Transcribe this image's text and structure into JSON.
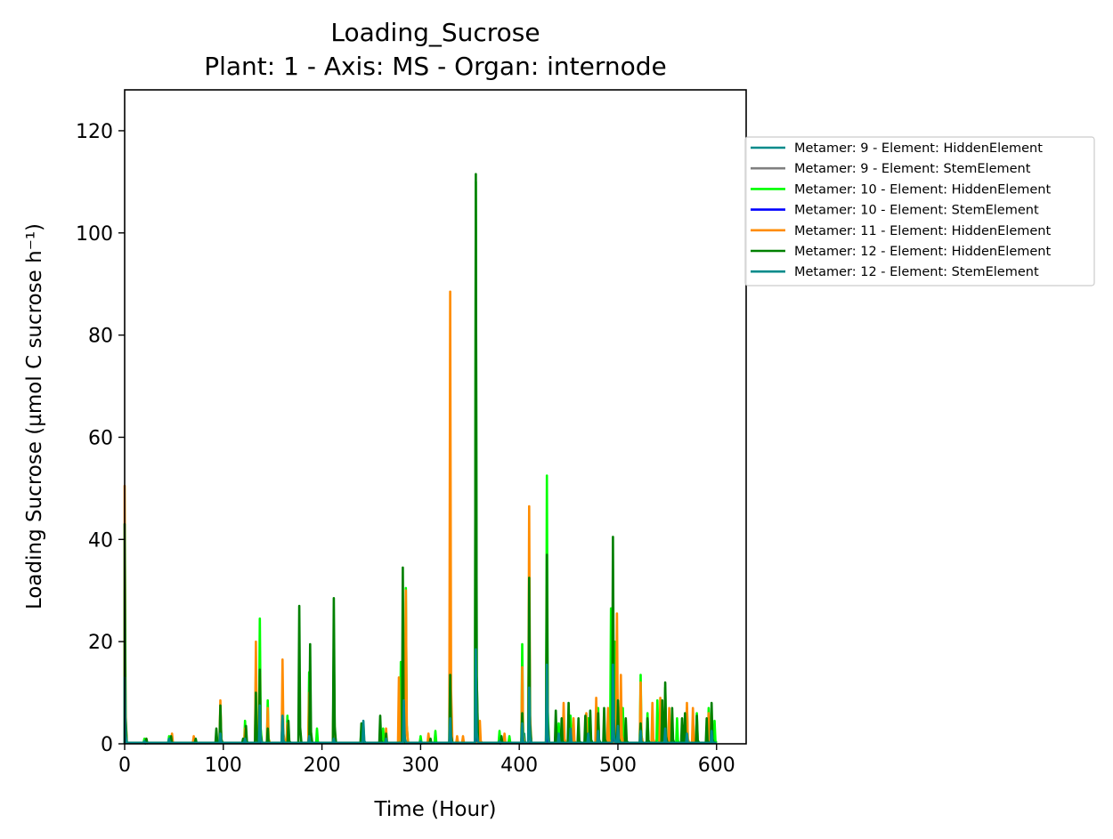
{
  "chart_data": {
    "type": "line",
    "title": "Loading_Sucrose",
    "subtitle": "Plant: 1 - Axis: MS - Organ: internode",
    "xlabel": "Time (Hour)",
    "ylabel": "Loading Sucrose (µmol C sucrose h⁻¹)",
    "xlim": [
      0,
      630
    ],
    "ylim": [
      0,
      128
    ],
    "xticks": [
      0,
      100,
      200,
      300,
      400,
      500,
      600
    ],
    "yticks": [
      0,
      20,
      40,
      60,
      80,
      100,
      120
    ],
    "grid": false,
    "legend_position": "outside-right",
    "series": [
      {
        "name": "Metamer: 9 - Element: HiddenElement",
        "color": "#008b8b",
        "spikes": [
          [
            0,
            4
          ],
          [
            137,
            3
          ],
          [
            160,
            2
          ],
          [
            283,
            2
          ],
          [
            330,
            1
          ],
          [
            356,
            3
          ],
          [
            405,
            2
          ],
          [
            428,
            3
          ],
          [
            452,
            2
          ],
          [
            495,
            3
          ],
          [
            545,
            2
          ],
          [
            595,
            1
          ]
        ]
      },
      {
        "name": "Metamer: 9 - Element: StemElement",
        "color": "#808080",
        "spikes": [
          [
            0,
            2
          ],
          [
            137,
            1
          ],
          [
            283,
            1
          ],
          [
            356,
            2
          ],
          [
            428,
            2
          ],
          [
            495,
            2
          ],
          [
            545,
            1
          ]
        ]
      },
      {
        "name": "Metamer: 10 - Element: HiddenElement",
        "color": "#00ff00",
        "spikes": [
          [
            0,
            30
          ],
          [
            20,
            1
          ],
          [
            45,
            1.5
          ],
          [
            70,
            1
          ],
          [
            97,
            7
          ],
          [
            122,
            4.5
          ],
          [
            133,
            15
          ],
          [
            137,
            24.5
          ],
          [
            145,
            8.5
          ],
          [
            160,
            5
          ],
          [
            165,
            5.5
          ],
          [
            187,
            14
          ],
          [
            195,
            3
          ],
          [
            212,
            19
          ],
          [
            240,
            3
          ],
          [
            262,
            3
          ],
          [
            280,
            16
          ],
          [
            285,
            30.5
          ],
          [
            300,
            1.5
          ],
          [
            315,
            2.5
          ],
          [
            330,
            12
          ],
          [
            356,
            110
          ],
          [
            380,
            2.5
          ],
          [
            390,
            1.5
          ],
          [
            403,
            19.5
          ],
          [
            410,
            28
          ],
          [
            428,
            52.5
          ],
          [
            440,
            4
          ],
          [
            452,
            5.5
          ],
          [
            470,
            5
          ],
          [
            480,
            7
          ],
          [
            493,
            26.5
          ],
          [
            497,
            20
          ],
          [
            505,
            7
          ],
          [
            523,
            13.5
          ],
          [
            530,
            6
          ],
          [
            540,
            8.5
          ],
          [
            548,
            11
          ],
          [
            560,
            5
          ],
          [
            570,
            7
          ],
          [
            580,
            6
          ],
          [
            592,
            7
          ],
          [
            598,
            4.5
          ]
        ]
      },
      {
        "name": "Metamer: 10 - Element: StemElement",
        "color": "#0000ff",
        "spikes": [
          [
            0,
            3
          ],
          [
            137,
            2
          ],
          [
            283,
            2
          ],
          [
            356,
            5
          ],
          [
            428,
            4
          ],
          [
            495,
            4
          ],
          [
            548,
            3
          ]
        ]
      },
      {
        "name": "Metamer: 11 - Element: HiddenElement",
        "color": "#ff8c00",
        "spikes": [
          [
            0,
            50.5
          ],
          [
            22,
            1
          ],
          [
            48,
            2
          ],
          [
            70,
            1.5
          ],
          [
            97,
            8.5
          ],
          [
            122,
            3
          ],
          [
            133,
            20
          ],
          [
            137,
            14
          ],
          [
            145,
            7
          ],
          [
            160,
            16.5
          ],
          [
            165,
            4
          ],
          [
            187,
            10
          ],
          [
            212,
            15
          ],
          [
            242,
            4
          ],
          [
            265,
            3
          ],
          [
            278,
            13
          ],
          [
            285,
            30
          ],
          [
            308,
            2
          ],
          [
            330,
            88.5
          ],
          [
            337,
            1.5
          ],
          [
            343,
            1.5
          ],
          [
            360,
            4.5
          ],
          [
            385,
            2
          ],
          [
            403,
            15
          ],
          [
            410,
            46.5
          ],
          [
            428,
            30
          ],
          [
            445,
            8
          ],
          [
            455,
            5
          ],
          [
            468,
            6
          ],
          [
            478,
            9
          ],
          [
            490,
            7
          ],
          [
            499,
            25.5
          ],
          [
            503,
            13.5
          ],
          [
            523,
            12
          ],
          [
            535,
            8
          ],
          [
            543,
            9
          ],
          [
            552,
            7
          ],
          [
            570,
            8
          ],
          [
            576,
            7
          ],
          [
            592,
            6
          ]
        ]
      },
      {
        "name": "Metamer: 12 - Element: HiddenElement",
        "color": "#008000",
        "spikes": [
          [
            0,
            43
          ],
          [
            22,
            1
          ],
          [
            47,
            1.5
          ],
          [
            72,
            1
          ],
          [
            93,
            3
          ],
          [
            97,
            7.5
          ],
          [
            120,
            1
          ],
          [
            123,
            3.5
          ],
          [
            133,
            10
          ],
          [
            137,
            14.5
          ],
          [
            145,
            3
          ],
          [
            160,
            5
          ],
          [
            166,
            4.5
          ],
          [
            177,
            27
          ],
          [
            188,
            19.5
          ],
          [
            212,
            28.5
          ],
          [
            240,
            4
          ],
          [
            259,
            5.5
          ],
          [
            265,
            2
          ],
          [
            282,
            34.5
          ],
          [
            310,
            1
          ],
          [
            330,
            13.5
          ],
          [
            356,
            111.5
          ],
          [
            382,
            1.5
          ],
          [
            403,
            6
          ],
          [
            410,
            32.5
          ],
          [
            428,
            37
          ],
          [
            437,
            6.5
          ],
          [
            443,
            5
          ],
          [
            450,
            8
          ],
          [
            460,
            5
          ],
          [
            467,
            5.5
          ],
          [
            472,
            6.5
          ],
          [
            480,
            6
          ],
          [
            486,
            7
          ],
          [
            495,
            40.5
          ],
          [
            500,
            8.5
          ],
          [
            508,
            5
          ],
          [
            523,
            4
          ],
          [
            530,
            5
          ],
          [
            545,
            8.5
          ],
          [
            548,
            12
          ],
          [
            555,
            7
          ],
          [
            565,
            5
          ],
          [
            568,
            6
          ],
          [
            580,
            5.5
          ],
          [
            590,
            5
          ],
          [
            595,
            8
          ]
        ]
      },
      {
        "name": "Metamer: 12 - Element: StemElement",
        "color": "#008b8b",
        "spikes": [
          [
            0,
            13
          ],
          [
            20,
            0.5
          ],
          [
            45,
            1
          ],
          [
            97,
            2
          ],
          [
            122,
            1
          ],
          [
            137,
            7.5
          ],
          [
            160,
            5.5
          ],
          [
            187,
            1.5
          ],
          [
            212,
            1
          ],
          [
            242,
            4.5
          ],
          [
            265,
            1
          ],
          [
            283,
            8.5
          ],
          [
            300,
            0.5
          ],
          [
            330,
            5
          ],
          [
            356,
            18.5
          ],
          [
            380,
            0.5
          ],
          [
            403,
            4
          ],
          [
            410,
            11
          ],
          [
            428,
            15.5
          ],
          [
            440,
            2
          ],
          [
            452,
            3
          ],
          [
            470,
            2
          ],
          [
            480,
            2.5
          ],
          [
            495,
            15.5
          ],
          [
            500,
            3.5
          ],
          [
            523,
            2.5
          ],
          [
            548,
            3
          ],
          [
            570,
            2
          ],
          [
            595,
            2.5
          ]
        ]
      }
    ]
  }
}
